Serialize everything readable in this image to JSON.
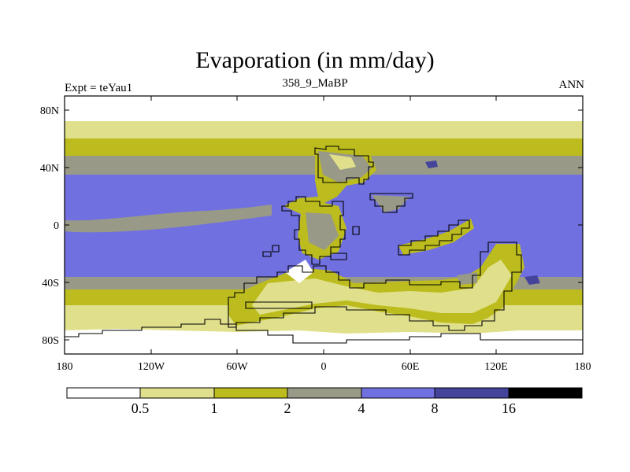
{
  "title": "Evaporation (in mm/day)",
  "subtitle_left": "Expt = teYau1",
  "subtitle_center": "358_9_MaBP",
  "subtitle_right": "ANN",
  "lat_ticks": [
    "80N",
    "40N",
    "0",
    "40S",
    "80S"
  ],
  "lon_ticks": [
    "180",
    "120W",
    "60W",
    "0",
    "60E",
    "120E",
    "180"
  ],
  "colorbar": {
    "labels": [
      "0.5",
      "1",
      "2",
      "4",
      "8",
      "16"
    ],
    "colors": [
      "#ffffff",
      "#e0e08c",
      "#bcbc1e",
      "#999988",
      "#7070e0",
      "#44449a",
      "#000000"
    ]
  }
}
